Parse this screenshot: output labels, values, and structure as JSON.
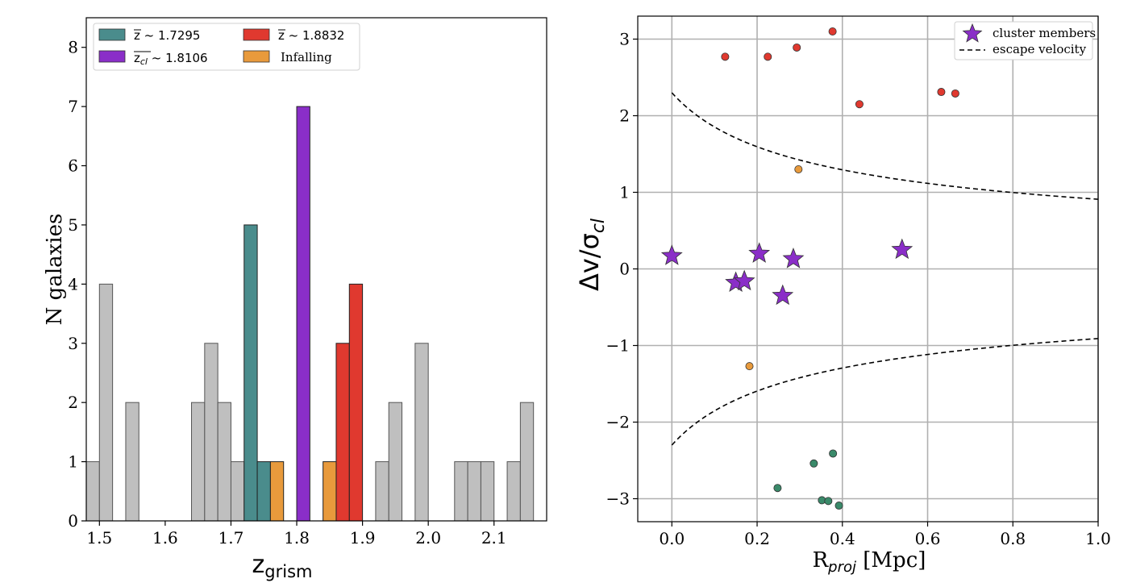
{
  "chart_data": [
    {
      "type": "bar",
      "name": "histogram",
      "xlabel_main": "z",
      "xlabel_sub": "grism",
      "ylabel": "N galaxies",
      "xlim": [
        1.48,
        2.18
      ],
      "ylim": [
        0,
        8.5
      ],
      "xticks": [
        1.5,
        1.6,
        1.7,
        1.8,
        1.9,
        2.0,
        2.1
      ],
      "xtick_labels": [
        "1.5",
        "1.6",
        "1.7",
        "1.8",
        "1.9",
        "2.0",
        "2.1"
      ],
      "yticks": [
        0,
        1,
        2,
        3,
        4,
        5,
        6,
        7,
        8
      ],
      "ytick_labels": [
        "0",
        "1",
        "2",
        "3",
        "4",
        "5",
        "6",
        "7",
        "8"
      ],
      "bin_width": 0.02,
      "series": [
        {
          "name": "field",
          "color": "#bfbfbf",
          "bins": [
            [
              1.48,
              1
            ],
            [
              1.5,
              4
            ],
            [
              1.54,
              2
            ],
            [
              1.64,
              2
            ],
            [
              1.66,
              3
            ],
            [
              1.68,
              2
            ],
            [
              1.7,
              1
            ],
            [
              1.92,
              1
            ],
            [
              1.94,
              2
            ],
            [
              1.98,
              3
            ],
            [
              2.04,
              1
            ],
            [
              2.06,
              1
            ],
            [
              2.08,
              1
            ],
            [
              2.12,
              1
            ],
            [
              2.14,
              2
            ]
          ]
        },
        {
          "name": "z_1.7295",
          "color": "#4a8c8c",
          "bins": [
            [
              1.72,
              5
            ],
            [
              1.74,
              1
            ]
          ]
        },
        {
          "name": "z_cl_1.8106",
          "color": "#8a2ec8",
          "bins": [
            [
              1.8,
              7
            ]
          ]
        },
        {
          "name": "z_1.8832",
          "color": "#e0392f",
          "bins": [
            [
              1.86,
              3
            ],
            [
              1.88,
              4
            ]
          ]
        },
        {
          "name": "Infalling",
          "color": "#e89a3c",
          "bins": [
            [
              1.76,
              1
            ],
            [
              1.84,
              1
            ]
          ]
        }
      ],
      "legend": [
        {
          "label_prefix": "z",
          "label_rest": " ~ 1.7295",
          "color": "#4a8c8c",
          "style": "zbar"
        },
        {
          "label_prefix": "z",
          "label_rest": " ~ 1.8832",
          "color": "#e0392f",
          "style": "zbar"
        },
        {
          "label_prefix": "z",
          "label_sub": "cl",
          "label_rest": " ~ 1.8106",
          "color": "#8a2ec8",
          "style": "zclbar"
        },
        {
          "label": "Infalling",
          "color": "#e89a3c",
          "style": "plain"
        }
      ]
    },
    {
      "type": "scatter",
      "name": "phase-space",
      "xlabel_main": "R",
      "xlabel_sub": "proj",
      "xlabel_rest": " [Mpc]",
      "ylabel": "Δv/σ",
      "ylabel_sub": "cl",
      "xlim": [
        -0.08,
        1.0
      ],
      "ylim": [
        -3.3,
        3.3
      ],
      "xticks": [
        0.0,
        0.2,
        0.4,
        0.6,
        0.8,
        1.0
      ],
      "xtick_labels": [
        "0.0",
        "0.2",
        "0.4",
        "0.6",
        "0.8",
        "1.0"
      ],
      "yticks": [
        -3,
        -2,
        -1,
        0,
        1,
        2,
        3
      ],
      "ytick_labels": [
        "−3",
        "−2",
        "−1",
        "0",
        "1",
        "2",
        "3"
      ],
      "grid": true,
      "stars": {
        "name": "cluster members",
        "color": "#8a2ec8",
        "points": [
          [
            0.0,
            0.17
          ],
          [
            0.15,
            -0.18
          ],
          [
            0.17,
            -0.16
          ],
          [
            0.205,
            0.2
          ],
          [
            0.26,
            -0.35
          ],
          [
            0.285,
            0.13
          ],
          [
            0.54,
            0.25
          ]
        ]
      },
      "red_points": {
        "color": "#e0392f",
        "points": [
          [
            0.125,
            2.77
          ],
          [
            0.225,
            2.77
          ],
          [
            0.293,
            2.89
          ],
          [
            0.377,
            3.1
          ],
          [
            0.44,
            2.15
          ],
          [
            0.632,
            2.31
          ],
          [
            0.665,
            2.29
          ]
        ]
      },
      "orange_points": {
        "color": "#e89a3c",
        "points": [
          [
            0.297,
            1.3
          ],
          [
            0.182,
            -1.27
          ]
        ]
      },
      "green_points": {
        "color": "#3a8a6a",
        "points": [
          [
            0.248,
            -2.86
          ],
          [
            0.333,
            -2.54
          ],
          [
            0.352,
            -3.02
          ],
          [
            0.367,
            -3.03
          ],
          [
            0.378,
            -2.41
          ],
          [
            0.392,
            -3.09
          ]
        ]
      },
      "escape_velocity": {
        "name": "escape velocity",
        "A": 2.3
      },
      "legend": [
        {
          "label": "cluster members",
          "marker": "star"
        },
        {
          "label": "escape velocity",
          "marker": "dashed"
        }
      ]
    }
  ]
}
